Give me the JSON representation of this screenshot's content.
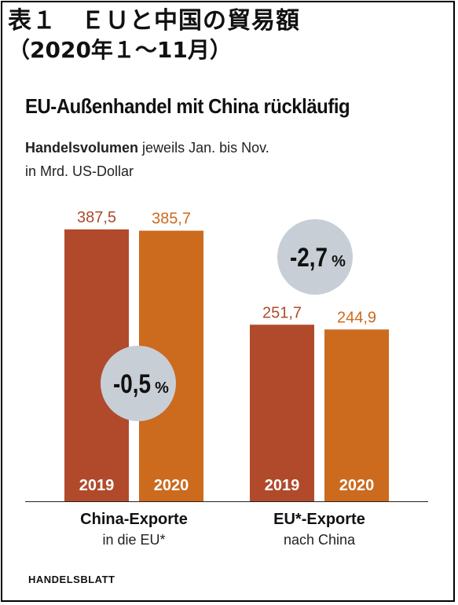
{
  "header": {
    "jp_title": "表１　ＥＵと中国の貿易額",
    "jp_subtitle": "（2020年１～11月）"
  },
  "chart_data": {
    "type": "bar",
    "title": "EU-Außenhandel mit China rückläufig",
    "subtitle_bold": "Handelsvolumen",
    "subtitle_rest": " jeweils Jan. bis Nov.",
    "unit_line": "in Mrd. US-Dollar",
    "categories": [
      "China-Exporte in die EU*",
      "EU*-Exporte nach China"
    ],
    "category_lines": [
      {
        "line1": "China-Exporte",
        "line2": "in die EU*"
      },
      {
        "line1": "EU*-Exporte",
        "line2": "nach China"
      }
    ],
    "series": [
      {
        "name": "2019",
        "values": [
          387.5,
          251.7
        ],
        "labels": [
          "387,5",
          "251,7"
        ],
        "color": "#b04a2b"
      },
      {
        "name": "2020",
        "values": [
          385.7,
          244.9
        ],
        "labels": [
          "385,7",
          "244,9"
        ],
        "color": "#cc6a1e"
      }
    ],
    "changes": [
      {
        "value": "-0,5",
        "unit": "%"
      },
      {
        "value": "-2,7",
        "unit": "%"
      }
    ],
    "ylim": [
      0,
      387.5
    ],
    "grid": false,
    "badge_color": "#c7ced6"
  },
  "source": "HANDELSBLATT"
}
